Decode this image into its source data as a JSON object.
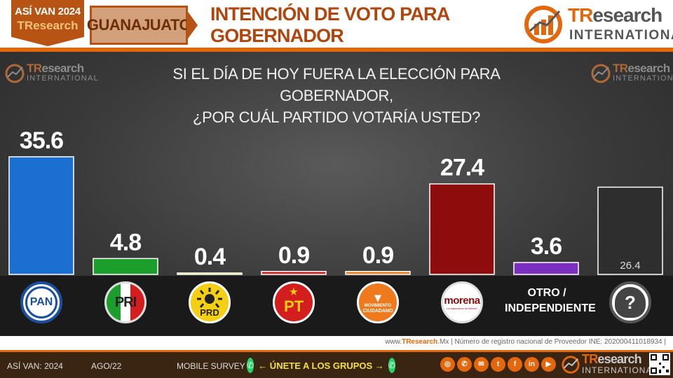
{
  "header": {
    "asi_van": "ASÍ VAN 2024",
    "brand_short": "TResearch",
    "state": "GUANAJUATO",
    "title": "INTENCIÓN DE VOTO PARA GOBERNADOR",
    "logo_main_a": "TR",
    "logo_main_b": "esearch",
    "logo_sub": "INTERNATIONAL"
  },
  "question": {
    "line1": "SI EL DÍA DE HOY FUERA LA ELECCIÓN PARA GOBERNADOR,",
    "line2": "¿POR CUÁL PARTIDO VOTARÍA USTED?"
  },
  "watermark": {
    "a": "TR",
    "b": "esearch",
    "c": "INTERNATIONAL"
  },
  "parties": {
    "pan": "PAN",
    "pri": "PRI",
    "prd": "PRD",
    "pt": "PT",
    "mc_line1": "MOVIMIENTO",
    "mc_line2": "CIUDADANO",
    "morena": "morena",
    "morena_sub": "La esperanza de México",
    "otro_line1": "OTRO /",
    "otro_line2": "INDEPENDIENTE",
    "unknown": "?"
  },
  "chart_data": {
    "type": "bar",
    "categories": [
      "PAN",
      "PRI",
      "PRD",
      "PT",
      "MOVIMIENTO CIUDADANO",
      "morena",
      "OTRO / INDEPENDIENTE",
      "?"
    ],
    "values": [
      35.6,
      4.8,
      0.4,
      0.9,
      0.9,
      27.4,
      3.6,
      26.4
    ],
    "labels": [
      "35.6",
      "4.8",
      "0.4",
      "0.9",
      "0.9",
      "27.4",
      "3.6",
      "26.4"
    ],
    "colors": [
      "#1a6fd1",
      "#1c9e2c",
      "#f5cf14",
      "#cf1d1d",
      "#ee7a1d",
      "#8e0c0c",
      "#7a2fc1",
      "#2e2e2e"
    ],
    "title": "INTENCIÓN DE VOTO PARA GOBERNADOR",
    "xlabel": "",
    "ylabel": "",
    "ylim": [
      0,
      40
    ],
    "grid": false,
    "legend": "none"
  },
  "footer": {
    "note_prefix": "www.",
    "note_brand": "TResearch",
    "note_rest": ".Mx | Número de registro nacional de Proveedor INE: 202000411018934 |",
    "left": "ASÍ VAN: 2024",
    "date": "AGO/22",
    "method": "MOBILE SURVEY",
    "join": "← ÚNETE A LOS GRUPOS →",
    "social_icons": [
      "globe-icon",
      "phone-icon",
      "email-icon",
      "twitter-icon",
      "facebook-icon",
      "linkedin-icon",
      "youtube-icon"
    ],
    "social_glyphs": [
      "◎",
      "✆",
      "✉",
      "t",
      "f",
      "in",
      "▶"
    ],
    "logo_a": "TR",
    "logo_b": "esearch",
    "logo_c": "INTERNATIONAL",
    "whatsapp_glyph": "✆"
  }
}
